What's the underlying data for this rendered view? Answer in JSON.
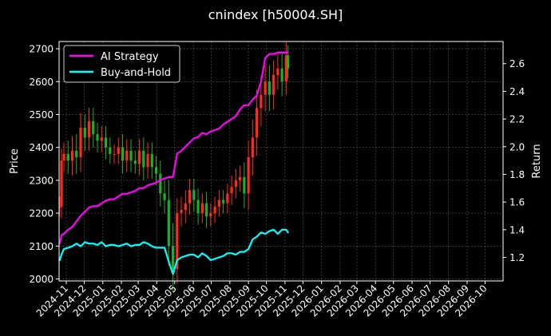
{
  "chart_data": {
    "type": "line",
    "title": "cnindex [h50004.SH]",
    "xlabel": "",
    "ylabel_left": "Price",
    "ylabel_right": "Return",
    "x_ticks": [
      "2024-11",
      "2024-12",
      "2025-01",
      "2025-02",
      "2025-03",
      "2025-04",
      "2025-05",
      "2025-06",
      "2025-07",
      "2025-08",
      "2025-09",
      "2025-10",
      "2025-11",
      "2025-12",
      "2026-01",
      "2026-02",
      "2026-03",
      "2026-04",
      "2026-05",
      "2026-06",
      "2026-07",
      "2026-08",
      "2026-09",
      "2026-10"
    ],
    "y_left_ticks": [
      2000,
      2100,
      2200,
      2300,
      2400,
      2500,
      2600,
      2700
    ],
    "y_right_ticks": [
      1.2,
      1.4,
      1.6,
      1.8,
      2.0,
      2.2,
      2.4,
      2.6
    ],
    "ylim_left": [
      1994,
      2722
    ],
    "ylim_right": [
      1.03,
      2.76
    ],
    "xlim": [
      "2024-10-20",
      "2026-10-31"
    ],
    "grid": true,
    "legend_position": "top-left",
    "colors": {
      "ai_strategy": "#ff00ff",
      "buy_and_hold": "#00ffff",
      "candle_up": "#ff2a1a",
      "candle_down": "#1db21d",
      "background": "#000000",
      "axes": "#ffffff",
      "grid": "#5a5a5a"
    },
    "series": [
      {
        "name": "AI Strategy",
        "axis": "right",
        "x": [
          "2024-10-21",
          "2024-10-24",
          "2024-10-28",
          "2024-11-04",
          "2024-11-11",
          "2024-11-18",
          "2024-11-25",
          "2024-12-02",
          "2024-12-09",
          "2024-12-16",
          "2024-12-23",
          "2024-12-30",
          "2025-01-06",
          "2025-01-13",
          "2025-01-20",
          "2025-01-27",
          "2025-02-03",
          "2025-02-10",
          "2025-02-17",
          "2025-02-24",
          "2025-03-03",
          "2025-03-10",
          "2025-03-17",
          "2025-03-24",
          "2025-03-31",
          "2025-04-07",
          "2025-04-14",
          "2025-04-21",
          "2025-04-28",
          "2025-05-05",
          "2025-05-12",
          "2025-05-19",
          "2025-05-26",
          "2025-06-02",
          "2025-06-09",
          "2025-06-16",
          "2025-06-23",
          "2025-06-30",
          "2025-07-07",
          "2025-07-14",
          "2025-07-21",
          "2025-07-28",
          "2025-08-04",
          "2025-08-11",
          "2025-08-18",
          "2025-08-25",
          "2025-09-01",
          "2025-09-08",
          "2025-09-15",
          "2025-09-22",
          "2025-09-29",
          "2025-10-06",
          "2025-10-13",
          "2025-10-20",
          "2025-10-27",
          "2025-11-03",
          "2025-11-06"
        ],
        "values": [
          1.3,
          1.36,
          1.37,
          1.4,
          1.42,
          1.46,
          1.5,
          1.53,
          1.56,
          1.57,
          1.57,
          1.59,
          1.61,
          1.62,
          1.62,
          1.64,
          1.66,
          1.66,
          1.67,
          1.68,
          1.7,
          1.7,
          1.72,
          1.73,
          1.74,
          1.76,
          1.77,
          1.78,
          1.78,
          1.95,
          1.97,
          2.0,
          2.03,
          2.06,
          2.07,
          2.1,
          2.09,
          2.11,
          2.12,
          2.13,
          2.16,
          2.18,
          2.2,
          2.22,
          2.27,
          2.3,
          2.3,
          2.34,
          2.37,
          2.47,
          2.64,
          2.67,
          2.67,
          2.68,
          2.68,
          2.68,
          2.68
        ]
      },
      {
        "name": "Buy-and-Hold",
        "axis": "right",
        "x": [
          "2024-10-21",
          "2024-10-24",
          "2024-10-28",
          "2024-11-04",
          "2024-11-11",
          "2024-11-18",
          "2024-11-25",
          "2024-12-02",
          "2024-12-09",
          "2024-12-16",
          "2024-12-23",
          "2024-12-30",
          "2025-01-06",
          "2025-01-13",
          "2025-01-20",
          "2025-01-27",
          "2025-02-03",
          "2025-02-10",
          "2025-02-17",
          "2025-02-24",
          "2025-03-03",
          "2025-03-10",
          "2025-03-17",
          "2025-03-24",
          "2025-03-31",
          "2025-04-07",
          "2025-04-14",
          "2025-04-21",
          "2025-04-28",
          "2025-05-05",
          "2025-05-12",
          "2025-05-19",
          "2025-05-26",
          "2025-06-02",
          "2025-06-09",
          "2025-06-16",
          "2025-06-23",
          "2025-06-30",
          "2025-07-07",
          "2025-07-14",
          "2025-07-21",
          "2025-07-28",
          "2025-08-04",
          "2025-08-11",
          "2025-08-18",
          "2025-08-25",
          "2025-09-01",
          "2025-09-08",
          "2025-09-15",
          "2025-09-22",
          "2025-09-29",
          "2025-10-06",
          "2025-10-13",
          "2025-10-20",
          "2025-10-27",
          "2025-11-03",
          "2025-11-06"
        ],
        "values": [
          1.18,
          1.22,
          1.26,
          1.27,
          1.28,
          1.3,
          1.28,
          1.31,
          1.3,
          1.3,
          1.29,
          1.31,
          1.28,
          1.29,
          1.29,
          1.28,
          1.29,
          1.3,
          1.28,
          1.29,
          1.29,
          1.31,
          1.3,
          1.28,
          1.27,
          1.27,
          1.27,
          1.17,
          1.08,
          1.18,
          1.2,
          1.21,
          1.22,
          1.22,
          1.2,
          1.23,
          1.21,
          1.18,
          1.19,
          1.2,
          1.21,
          1.23,
          1.23,
          1.22,
          1.24,
          1.24,
          1.26,
          1.33,
          1.35,
          1.38,
          1.37,
          1.39,
          1.4,
          1.37,
          1.4,
          1.4,
          1.38
        ]
      }
    ],
    "candles": {
      "axis": "left",
      "x": [
        "2024-10-21",
        "2024-10-24",
        "2024-10-28",
        "2024-11-04",
        "2024-11-11",
        "2024-11-18",
        "2024-11-25",
        "2024-12-02",
        "2024-12-09",
        "2024-12-16",
        "2024-12-23",
        "2024-12-30",
        "2025-01-06",
        "2025-01-13",
        "2025-01-20",
        "2025-01-27",
        "2025-02-03",
        "2025-02-10",
        "2025-02-17",
        "2025-02-24",
        "2025-03-03",
        "2025-03-10",
        "2025-03-17",
        "2025-03-24",
        "2025-03-31",
        "2025-04-07",
        "2025-04-14",
        "2025-04-21",
        "2025-04-28",
        "2025-05-05",
        "2025-05-12",
        "2025-05-19",
        "2025-05-26",
        "2025-06-02",
        "2025-06-09",
        "2025-06-16",
        "2025-06-23",
        "2025-06-30",
        "2025-07-07",
        "2025-07-14",
        "2025-07-21",
        "2025-07-28",
        "2025-08-04",
        "2025-08-11",
        "2025-08-18",
        "2025-08-25",
        "2025-09-01",
        "2025-09-08",
        "2025-09-15",
        "2025-09-22",
        "2025-09-29",
        "2025-10-06",
        "2025-10-13",
        "2025-10-20",
        "2025-10-27",
        "2025-11-03",
        "2025-11-06"
      ],
      "close": [
        2220,
        2360,
        2380,
        2360,
        2390,
        2370,
        2460,
        2430,
        2480,
        2440,
        2420,
        2430,
        2400,
        2380,
        2380,
        2400,
        2360,
        2390,
        2360,
        2350,
        2390,
        2340,
        2380,
        2340,
        2320,
        2260,
        2240,
        2100,
        2030,
        2200,
        2210,
        2230,
        2270,
        2240,
        2200,
        2230,
        2190,
        2200,
        2220,
        2240,
        2230,
        2260,
        2280,
        2300,
        2310,
        2260,
        2370,
        2430,
        2520,
        2560,
        2600,
        2560,
        2620,
        2640,
        2600,
        2680,
        2640
      ],
      "range": [
        60,
        70,
        70,
        80,
        90,
        100,
        90,
        80,
        80,
        80,
        70,
        70,
        70,
        60,
        60,
        60,
        80,
        70,
        70,
        60,
        70,
        80,
        70,
        70,
        70,
        80,
        80,
        120,
        140,
        90,
        80,
        80,
        70,
        70,
        70,
        60,
        70,
        60,
        60,
        60,
        60,
        60,
        70,
        70,
        70,
        90,
        100,
        110,
        110,
        110,
        100,
        100,
        90,
        90,
        90,
        80,
        60
      ]
    }
  }
}
